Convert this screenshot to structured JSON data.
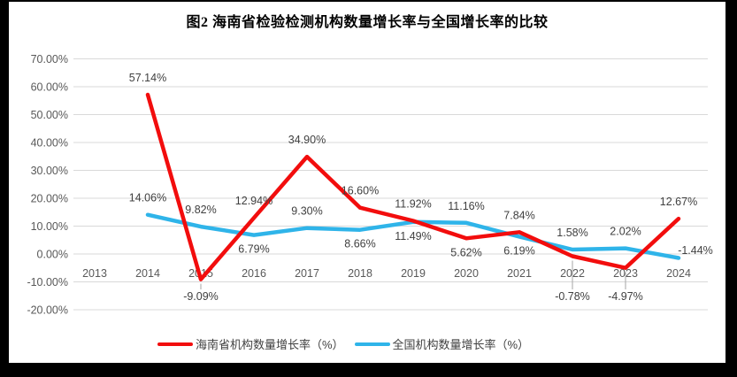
{
  "chart_data": {
    "type": "line",
    "title": "图2 海南省检验检测机构数量增长率与全国增长率的比较",
    "categories": [
      "2013",
      "2014",
      "2015",
      "2016",
      "2017",
      "2018",
      "2019",
      "2020",
      "2021",
      "2022",
      "2023",
      "2024"
    ],
    "y_ticks": [
      "70.00%",
      "60.00%",
      "50.00%",
      "40.00%",
      "30.00%",
      "20.00%",
      "10.00%",
      "0.00%",
      "-10.00%",
      "-20.00%"
    ],
    "ylim": [
      -20,
      70
    ],
    "grid": true,
    "legend_position": "bottom",
    "colors": {
      "hainan": "#f20d0d",
      "national": "#2fb4e9",
      "gridline": "#d9d9d9",
      "axis_text": "#595959",
      "data_label_text": "#404040",
      "leader_line": "#a6a6a6"
    },
    "series": [
      {
        "name": "海南省机构数量增长率（%）",
        "color_key": "hainan",
        "values": [
          null,
          57.14,
          -9.09,
          12.94,
          34.9,
          16.6,
          11.92,
          5.62,
          7.84,
          -0.78,
          -4.97,
          12.67
        ],
        "labels": [
          null,
          "57.14%",
          "-9.09%",
          "12.94%",
          "34.90%",
          "16.60%",
          "11.92%",
          "5.62%",
          "7.84%",
          "-0.78%",
          "-4.97%",
          "12.67%"
        ],
        "label_pos": [
          null,
          "above",
          "below-leader",
          "above",
          "above",
          "above",
          "above",
          "below",
          "above",
          "below-leader",
          "below-leader",
          "above"
        ]
      },
      {
        "name": "全国机构数量增长率（%）",
        "color_key": "national",
        "values": [
          null,
          14.06,
          9.82,
          6.79,
          9.3,
          8.66,
          11.49,
          11.16,
          6.19,
          1.58,
          2.02,
          -1.44
        ],
        "labels": [
          null,
          "14.06%",
          "9.82%",
          "6.79%",
          "9.30%",
          "8.66%",
          "11.49%",
          "11.16%",
          "6.19%",
          "1.58%",
          "2.02%",
          "-1.44%"
        ],
        "label_pos": [
          null,
          "above",
          "above",
          "below",
          "above",
          "below",
          "below",
          "above",
          "below",
          "above",
          "above",
          "above-right"
        ]
      }
    ]
  }
}
